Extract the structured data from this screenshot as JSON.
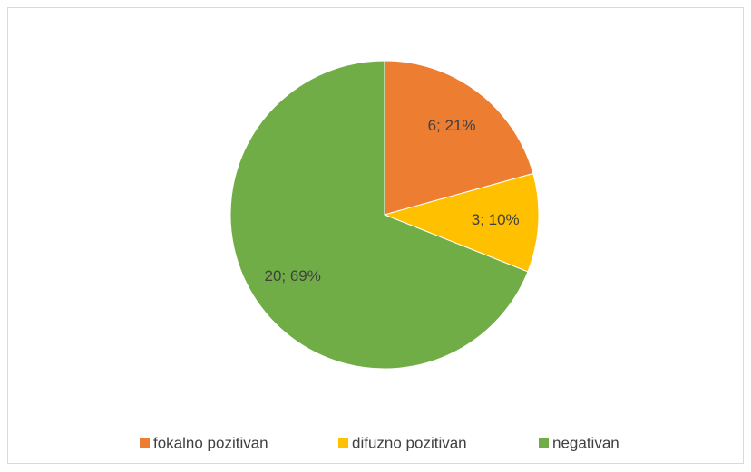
{
  "chart_data": {
    "type": "pie",
    "categories": [
      "fokalno pozitivan",
      "difuzno pozitivan",
      "negativan"
    ],
    "values": [
      6,
      3,
      20
    ],
    "value_labels": [
      "6; 21%",
      "3; 10%",
      "20; 69%"
    ],
    "colors": [
      "#ed7d31",
      "#ffc000",
      "#70ad47"
    ],
    "legend": "bottom"
  }
}
